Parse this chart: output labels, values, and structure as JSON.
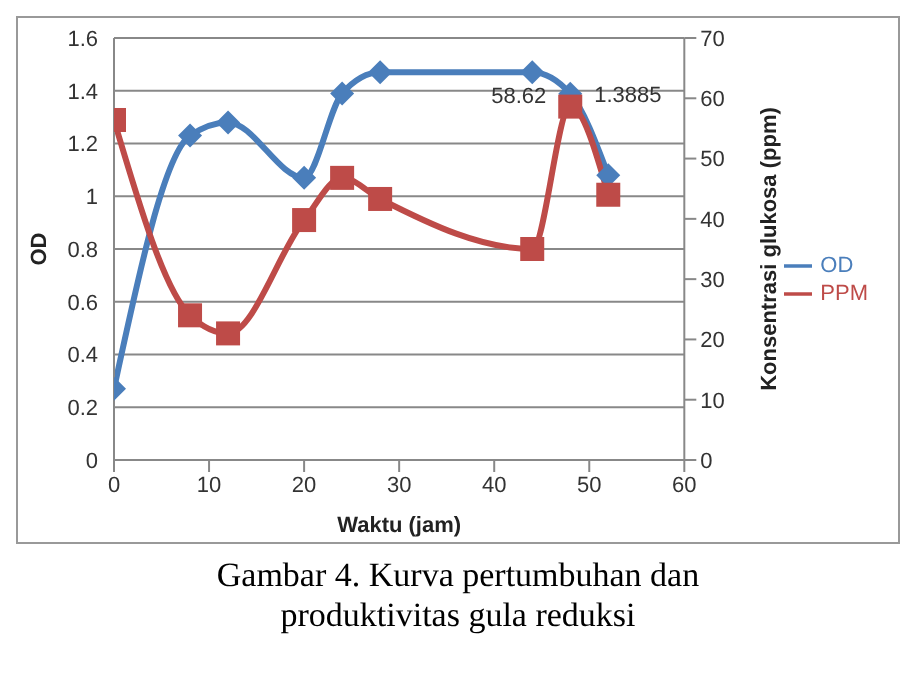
{
  "chart_data": {
    "type": "line",
    "x": [
      0,
      8,
      12,
      20,
      24,
      28,
      44,
      48,
      52
    ],
    "series": [
      {
        "name": "OD",
        "color": "#4a7ebb",
        "marker": "diamond",
        "values": [
          0.27,
          1.23,
          1.28,
          1.07,
          1.39,
          1.47,
          1.47,
          1.3885,
          1.08
        ],
        "value_labels": [
          null,
          null,
          null,
          null,
          null,
          null,
          null,
          "1.3885",
          null
        ]
      },
      {
        "name": "PPM",
        "color": "#be4b48",
        "marker": "square",
        "axis": "y2",
        "values": [
          56.4,
          24,
          21,
          39.8,
          46.8,
          43.3,
          35,
          58.62,
          44
        ],
        "value_labels": [
          null,
          null,
          null,
          null,
          null,
          null,
          null,
          "58.62",
          null
        ]
      }
    ],
    "xlabel": "Waktu (jam)",
    "ylabel": "OD",
    "y2label": "Konsentrasi glukosa (ppm)",
    "xlim": [
      0,
      60
    ],
    "xticks": [
      0,
      10,
      20,
      30,
      40,
      50,
      60
    ],
    "ylim": [
      0,
      1.6
    ],
    "yticks": [
      0,
      0.2,
      0.4,
      0.6,
      0.8,
      1,
      1.2,
      1.4,
      1.6
    ],
    "y2lim": [
      0,
      70
    ],
    "y2ticks": [
      0,
      10,
      20,
      30,
      40,
      50,
      60,
      70
    ],
    "grid": "y",
    "legend": "right",
    "annotations": [
      "Gambar 4. Kurva pertumbuhan dan produktivitas  gula reduksi"
    ]
  }
}
